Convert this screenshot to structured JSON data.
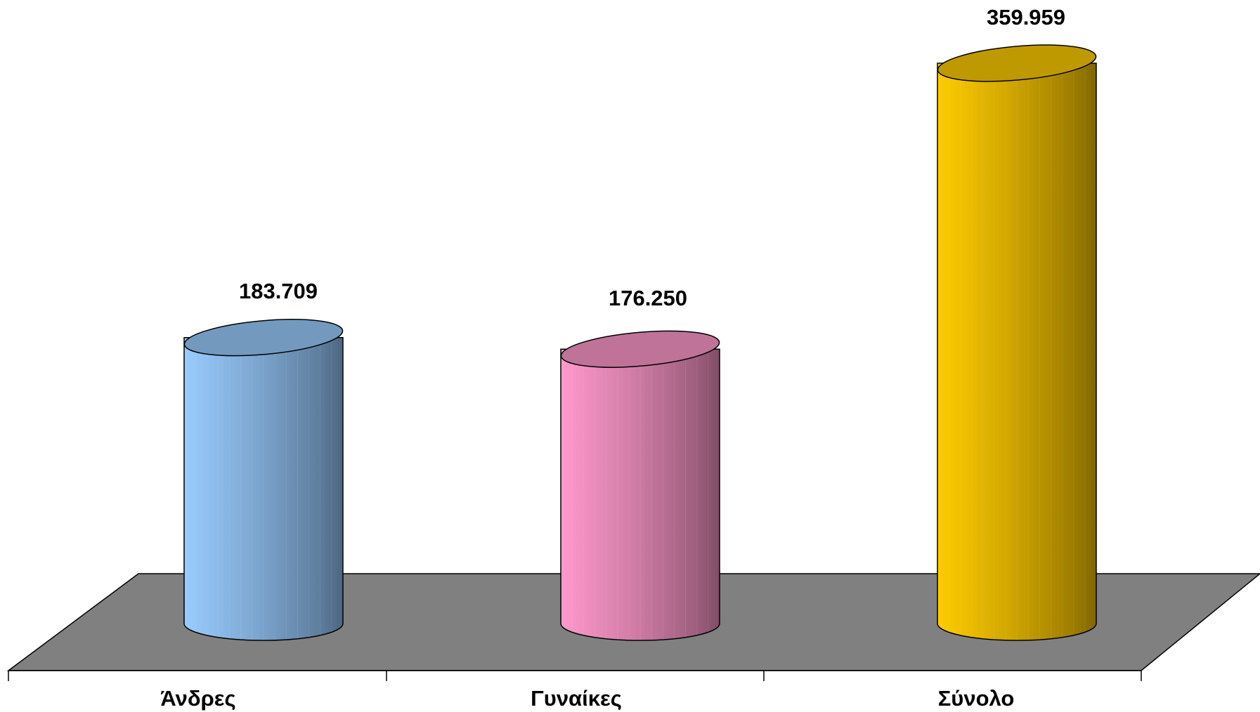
{
  "chart_data": {
    "type": "bar",
    "categories": [
      "Άνδρες",
      "Γυναίκες",
      "Σύνολο"
    ],
    "values": [
      183709,
      176250,
      359959
    ],
    "value_labels": [
      "183.709",
      "176.250",
      "359.959"
    ],
    "colors": [
      "#99ccff",
      "#ff99cc",
      "#ffcc00"
    ],
    "title": "",
    "xlabel": "",
    "ylabel": "",
    "grid": false,
    "legend": "none",
    "floor_color": "#808080"
  }
}
